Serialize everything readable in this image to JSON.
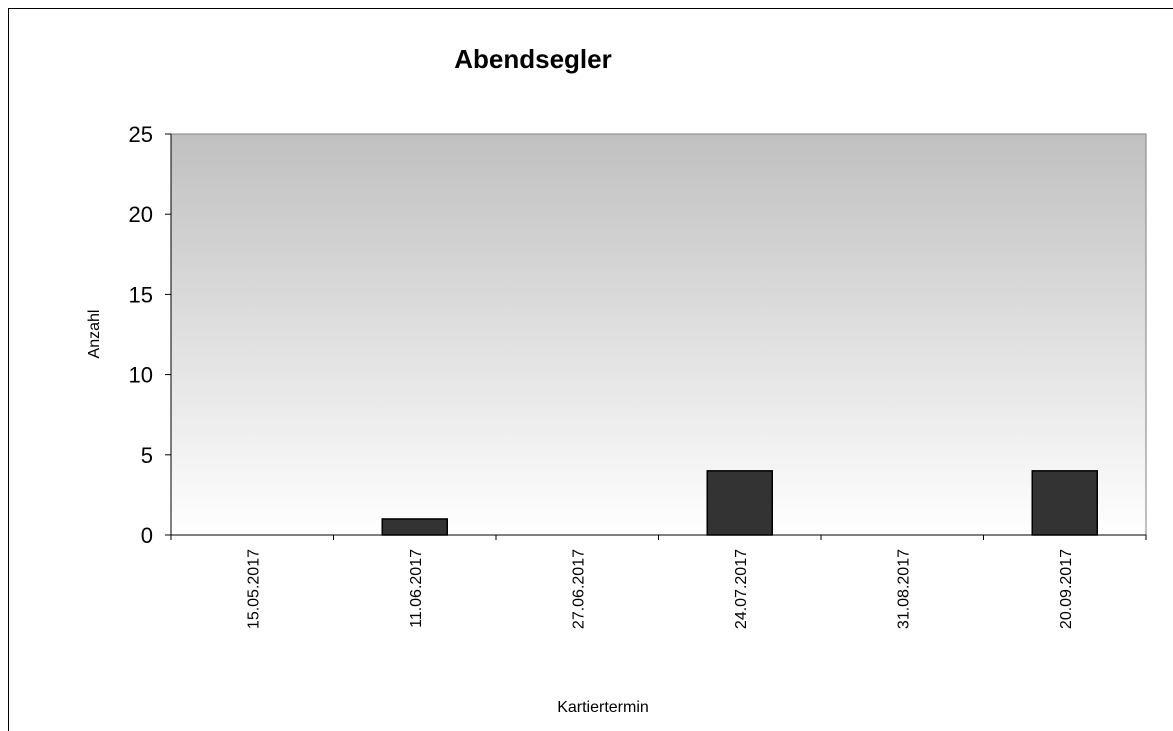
{
  "chart_data": {
    "type": "bar",
    "title": "Abendsegler",
    "xlabel": "Kartiertermin",
    "ylabel": "Anzahl",
    "categories": [
      "15.05.2017",
      "11.06.2017",
      "27.06.2017",
      "24.07.2017",
      "31.08.2017",
      "20.09.2017"
    ],
    "values": [
      0,
      1,
      0,
      4,
      0,
      4
    ],
    "ylim": [
      0,
      25
    ],
    "yticks": [
      "0",
      "5",
      "10",
      "15",
      "20",
      "25"
    ],
    "grid": false,
    "legend": "none",
    "colors": {
      "bar": "#333333",
      "bar_border": "#000000",
      "plot_bg_top": "#c0c0c0",
      "plot_bg_bottom": "#ffffff"
    }
  }
}
